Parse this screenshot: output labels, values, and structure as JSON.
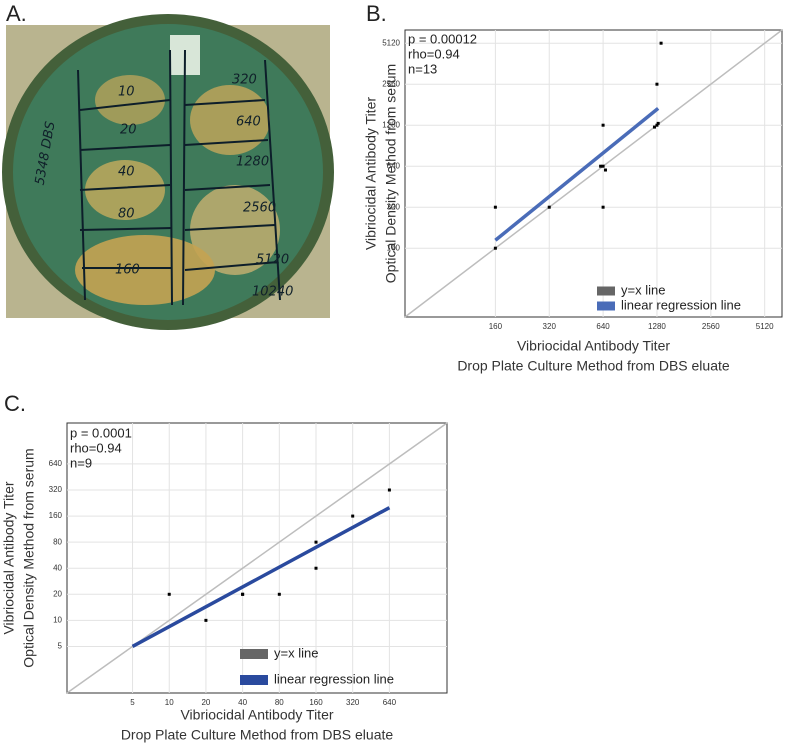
{
  "panel_labels": [
    "A.",
    "B.",
    "C."
  ],
  "photo": {
    "plate_id": "5348 DBS",
    "labels": [
      "10",
      "20",
      "40",
      "80",
      "160",
      "320",
      "640",
      "1280",
      "2560",
      "5120",
      "10240"
    ]
  },
  "chart_data": [
    {
      "type": "scatter",
      "xlabel": [
        "Vibriocidal Antibody Titer",
        "Drop Plate Culture Method from DBS eluate"
      ],
      "ylabel": [
        "Vibriocidal Antibody Titer",
        "Optical Density Method from serum"
      ],
      "annotations": [
        "p = 0.00012",
        "rho=0.94",
        "n=13"
      ],
      "x": [
        160,
        160,
        320,
        640,
        640,
        620,
        660,
        640,
        1240,
        1280,
        1300,
        1280,
        1350
      ],
      "y": [
        320,
        160,
        320,
        320,
        1280,
        640,
        600,
        640,
        1240,
        1280,
        1320,
        2560,
        5120
      ],
      "color": "#000000",
      "xlim": [
        50,
        6400
      ],
      "ylim": [
        50,
        6400
      ],
      "xticks": [
        160,
        320,
        640,
        1280,
        2560,
        5120
      ],
      "yticks": [
        160,
        320,
        640,
        1280,
        2560,
        5120
      ],
      "xscale": "log",
      "yscale": "log",
      "grid": true,
      "legend": "bottom-right",
      "reference_line": {
        "name": "y=x line",
        "color": "#bdbdbd"
      },
      "regression": {
        "name": "linear regression line",
        "color": "#4a6cb8",
        "x": [
          160,
          1300
        ],
        "y": [
          183,
          1700
        ]
      }
    },
    {
      "type": "scatter",
      "xlabel": [
        "Vibriocidal Antibody Titer",
        "Drop Plate Culture Method from DBS eluate"
      ],
      "ylabel": [
        "Vibriocidal Antibody Titer",
        "Optical Density Method from serum"
      ],
      "annotations": [
        "p = 0.0001",
        "rho=0.94",
        "n=9"
      ],
      "x": [
        10,
        20,
        40,
        40,
        80,
        160,
        160,
        320,
        640
      ],
      "y": [
        20,
        10,
        20,
        20,
        20,
        80,
        40,
        160,
        320
      ],
      "color": "#000000",
      "xlim": [
        1.45,
        1900
      ],
      "ylim": [
        1.45,
        1900
      ],
      "xticks": [
        5,
        10,
        20,
        40,
        80,
        160,
        320,
        640
      ],
      "yticks": [
        5,
        10,
        20,
        40,
        80,
        160,
        320,
        640
      ],
      "xscale": "log",
      "yscale": "log",
      "grid": true,
      "legend": "bottom-center",
      "reference_line": {
        "name": "y=x line",
        "color": "#bdbdbd"
      },
      "regression": {
        "name": "linear regression line",
        "color": "#2a4a9e",
        "x": [
          5,
          640
        ],
        "y": [
          5,
          200
        ]
      }
    }
  ]
}
